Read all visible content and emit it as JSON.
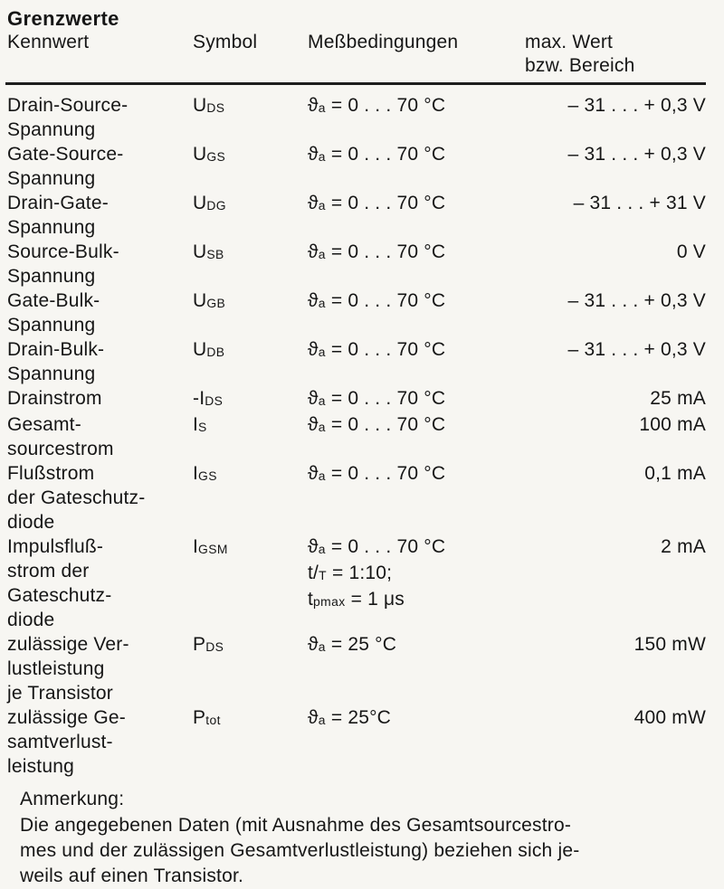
{
  "page": {
    "title": "Grenzwerte",
    "note_title": "Anmerkung:",
    "note_text": "Die angegebenen Daten (mit Ausnahme des Gesamtsourcestro-\nmes und der zulässigen Gesamtverlustleistung) beziehen sich je-\nweils auf einen Transistor."
  },
  "colors": {
    "paper": "#f7f6f2",
    "ink": "#161616"
  },
  "table": {
    "columns": {
      "kennwert": "Kennwert",
      "symbol": "Symbol",
      "messbedingungen": "Meßbedingungen",
      "max_wert": "max. Wert\nbzw. Bereich"
    },
    "rows": [
      {
        "label": "Drain-Source-\nSpannung",
        "symbol": [
          [
            {
              "t": "U"
            },
            {
              "t": "DS",
              "sub": true
            }
          ]
        ],
        "cond": [
          [
            {
              "t": "ϑ"
            },
            {
              "t": "a",
              "sub": true
            },
            {
              "t": " = 0 . . . 70 °C"
            }
          ]
        ],
        "value": "– 31 . . . + 0,3 V"
      },
      {
        "label": "Gate-Source-\nSpannung",
        "symbol": [
          [
            {
              "t": "U"
            },
            {
              "t": "GS",
              "sub": true
            }
          ]
        ],
        "cond": [
          [
            {
              "t": "ϑ"
            },
            {
              "t": "a",
              "sub": true
            },
            {
              "t": " = 0 . . . 70 °C"
            }
          ]
        ],
        "value": "– 31 . . . + 0,3 V"
      },
      {
        "label": "Drain-Gate-\nSpannung",
        "symbol": [
          [
            {
              "t": "U"
            },
            {
              "t": "DG",
              "sub": true
            }
          ]
        ],
        "cond": [
          [
            {
              "t": "ϑ"
            },
            {
              "t": "a",
              "sub": true
            },
            {
              "t": " = 0 . . . 70 °C"
            }
          ]
        ],
        "value": "– 31 . . . + 31 V"
      },
      {
        "label": "Source-Bulk-\nSpannung",
        "symbol": [
          [
            {
              "t": "U"
            },
            {
              "t": "SB",
              "sub": true
            }
          ]
        ],
        "cond": [
          [
            {
              "t": "ϑ"
            },
            {
              "t": "a",
              "sub": true
            },
            {
              "t": " = 0 . . . 70 °C"
            }
          ]
        ],
        "value": "0 V"
      },
      {
        "label": "Gate-Bulk-\nSpannung",
        "symbol": [
          [
            {
              "t": "U"
            },
            {
              "t": "GB",
              "sub": true
            }
          ]
        ],
        "cond": [
          [
            {
              "t": "ϑ"
            },
            {
              "t": "a",
              "sub": true
            },
            {
              "t": " = 0 . . . 70 °C"
            }
          ]
        ],
        "value": "– 31 . . . + 0,3 V"
      },
      {
        "label": "Drain-Bulk-\nSpannung",
        "symbol": [
          [
            {
              "t": "U"
            },
            {
              "t": "DB",
              "sub": true
            }
          ]
        ],
        "cond": [
          [
            {
              "t": "ϑ"
            },
            {
              "t": "a",
              "sub": true
            },
            {
              "t": " = 0 . . . 70 °C"
            }
          ]
        ],
        "value": "– 31 . . . + 0,3 V"
      },
      {
        "label": "Drainstrom",
        "symbol": [
          [
            {
              "t": "-I"
            },
            {
              "t": "DS",
              "sub": true
            }
          ]
        ],
        "cond": [
          [
            {
              "t": "ϑ"
            },
            {
              "t": "a",
              "sub": true
            },
            {
              "t": " = 0 . . . 70 °C"
            }
          ]
        ],
        "value": "25 mA"
      },
      {
        "label": "Gesamt-\nsourcestrom",
        "symbol": [
          [
            {
              "t": "I"
            },
            {
              "t": "S",
              "sub": true
            }
          ]
        ],
        "cond": [
          [
            {
              "t": "ϑ"
            },
            {
              "t": "a",
              "sub": true
            },
            {
              "t": " = 0 . . . 70 °C"
            }
          ]
        ],
        "value": "100 mA"
      },
      {
        "label": "Flußstrom\nder Gateschutz-\ndiode",
        "symbol": [
          [
            {
              "t": "I"
            },
            {
              "t": "GS",
              "sub": true
            }
          ]
        ],
        "cond": [
          [
            {
              "t": "ϑ"
            },
            {
              "t": "a",
              "sub": true
            },
            {
              "t": " = 0 . . . 70 °C"
            }
          ]
        ],
        "value": "0,1 mA"
      },
      {
        "label": "Impulsfluß-\nstrom der\nGateschutz-\ndiode",
        "symbol": [
          [
            {
              "t": "I"
            },
            {
              "t": "GSM",
              "sub": true
            }
          ]
        ],
        "cond": [
          [
            {
              "t": "ϑ"
            },
            {
              "t": "a",
              "sub": true
            },
            {
              "t": " = 0 . . . 70 °C"
            }
          ],
          [
            {
              "t": "t/"
            },
            {
              "t": "T",
              "sub": true
            },
            {
              "t": " = 1:10;"
            }
          ],
          [
            {
              "t": "t"
            },
            {
              "t": "pmax",
              "sub": true
            },
            {
              "t": " = 1 μs"
            }
          ]
        ],
        "value": "2 mA"
      },
      {
        "label": "zulässige Ver-\nlustleistung\nje Transistor",
        "symbol": [
          [
            {
              "t": "P"
            },
            {
              "t": "DS",
              "sub": true
            }
          ]
        ],
        "cond": [
          [
            {
              "t": "ϑ"
            },
            {
              "t": "a",
              "sub": true
            },
            {
              "t": " = 25 °C"
            }
          ]
        ],
        "value": "150 mW"
      },
      {
        "label": "zulässige Ge-\nsamtverlust-\nleistung",
        "symbol": [
          [
            {
              "t": "P"
            },
            {
              "t": "tot",
              "sub": true
            }
          ]
        ],
        "cond": [
          [
            {
              "t": "ϑ"
            },
            {
              "t": "a",
              "sub": true
            },
            {
              "t": " = 25°C"
            }
          ]
        ],
        "value": "400 mW"
      }
    ]
  }
}
